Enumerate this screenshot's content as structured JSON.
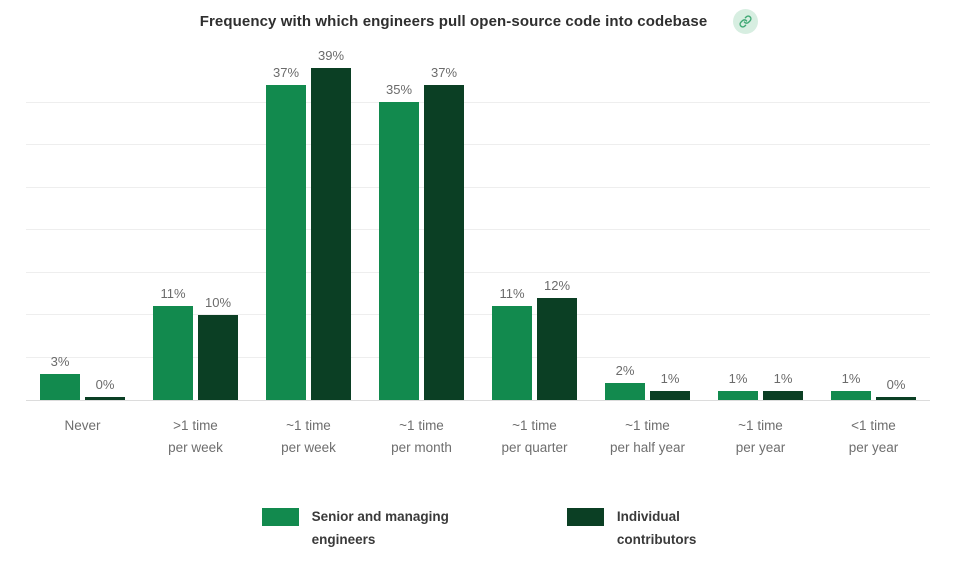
{
  "header": {
    "title": "Frequency with which engineers pull open-source code into codebase"
  },
  "colors": {
    "series_senior": "#128a4e",
    "series_individual": "#0b3f24",
    "gridline": "#eeeeee",
    "axis_line": "#dcdcdc",
    "value_label": "#6b6b6b",
    "category_label": "#6e6e6e",
    "title_text": "#2f2f2f",
    "legend_text": "#3a3a3a",
    "link_icon_bg": "#d7eee1",
    "link_icon_fg": "#3fa874"
  },
  "chart_data": {
    "type": "bar",
    "title": "Frequency with which engineers pull open-source code into codebase",
    "categories": [
      [
        "Never"
      ],
      [
        ">1 time",
        "per week"
      ],
      [
        "~1 time",
        "per week"
      ],
      [
        "~1 time",
        "per month"
      ],
      [
        "~1 time",
        "per quarter"
      ],
      [
        "~1 time",
        "per half year"
      ],
      [
        "~1 time",
        "per year"
      ],
      [
        "<1 time",
        "per year"
      ]
    ],
    "series": [
      {
        "name": "Senior and managing engineers",
        "legend_lines": [
          "Senior and managing",
          "engineers"
        ],
        "color": "#128a4e",
        "values": [
          3,
          11,
          37,
          35,
          11,
          2,
          1,
          1
        ]
      },
      {
        "name": "Individual contributors",
        "legend_lines": [
          "Individual",
          "contributors"
        ],
        "color": "#0b3f24",
        "values": [
          0,
          10,
          39,
          37,
          12,
          1,
          1,
          0
        ]
      }
    ],
    "value_suffix": "%",
    "xlabel": "",
    "ylabel": "",
    "ylim": [
      0,
      40
    ],
    "gridline_step": 5,
    "grid": true,
    "legend_position": "bottom"
  }
}
